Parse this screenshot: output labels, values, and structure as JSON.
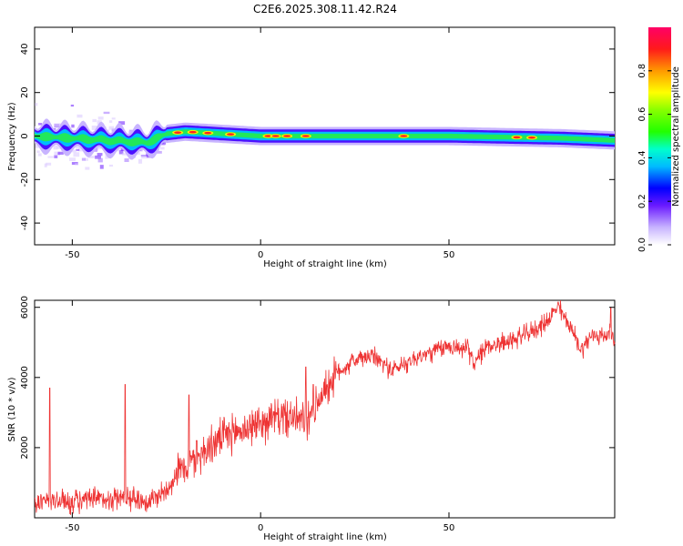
{
  "title": "C2E6.2025.308.11.42.R24",
  "chart_data": [
    {
      "type": "heatmap",
      "xlabel": "Height of straight line (km)",
      "ylabel": "Frequency (Hz)",
      "xlim": [
        -60,
        94
      ],
      "ylim": [
        -50,
        50
      ],
      "x_ticks": [
        "-50",
        "0",
        "50"
      ],
      "y_ticks": [
        "-40",
        "-20",
        "0",
        "20",
        "40"
      ],
      "x_tick_values": [
        -50,
        0,
        50
      ],
      "y_tick_values": [
        -40,
        -20,
        0,
        20,
        40
      ],
      "band": {
        "center_hz_by_x": [
          [
            -60,
            0
          ],
          [
            -30,
            -3
          ],
          [
            -25,
            1
          ],
          [
            -20,
            2
          ],
          [
            0,
            0
          ],
          [
            50,
            0
          ],
          [
            80,
            -1
          ],
          [
            94,
            -2
          ]
        ],
        "hot_spots_x": [
          -22,
          -18,
          -14,
          -8,
          2,
          4,
          7,
          12,
          38,
          68,
          72
        ]
      },
      "colorbar": {
        "label": "Normalized spectral amplitude",
        "ticks": [
          "0.0",
          "0.2",
          "0.4",
          "0.6",
          "0.8"
        ],
        "tick_values": [
          0.0,
          0.2,
          0.4,
          0.6,
          0.8
        ],
        "range": [
          0,
          1
        ]
      }
    },
    {
      "type": "line",
      "xlabel": "Height of straight line (km)",
      "ylabel": "SNR (10 * v/v)",
      "xlim": [
        -60,
        94
      ],
      "ylim": [
        0,
        6200
      ],
      "x_ticks": [
        "-50",
        "0",
        "50"
      ],
      "y_ticks": [
        "2000",
        "4000",
        "6000"
      ],
      "x_tick_values": [
        -50,
        0,
        50
      ],
      "y_tick_values": [
        2000,
        4000,
        6000
      ],
      "color": "#ee3333",
      "trend": [
        [
          -60,
          400
        ],
        [
          -55,
          500
        ],
        [
          -50,
          450
        ],
        [
          -45,
          500
        ],
        [
          -40,
          550
        ],
        [
          -35,
          600
        ],
        [
          -30,
          450
        ],
        [
          -25,
          800
        ],
        [
          -22,
          1300
        ],
        [
          -18,
          1600
        ],
        [
          -15,
          1900
        ],
        [
          -10,
          2300
        ],
        [
          -5,
          2500
        ],
        [
          0,
          2700
        ],
        [
          5,
          2900
        ],
        [
          10,
          2800
        ],
        [
          13,
          2700
        ],
        [
          15,
          3300
        ],
        [
          20,
          4100
        ],
        [
          25,
          4500
        ],
        [
          30,
          4600
        ],
        [
          35,
          4200
        ],
        [
          40,
          4500
        ],
        [
          45,
          4700
        ],
        [
          50,
          4900
        ],
        [
          55,
          4800
        ],
        [
          57,
          4400
        ],
        [
          60,
          4900
        ],
        [
          65,
          5000
        ],
        [
          70,
          5200
        ],
        [
          75,
          5500
        ],
        [
          79,
          6000
        ],
        [
          82,
          5500
        ],
        [
          85,
          4800
        ],
        [
          88,
          5200
        ],
        [
          94,
          5200
        ]
      ],
      "spikes": [
        [
          -56,
          3700
        ],
        [
          -36,
          3800
        ],
        [
          -19,
          3500
        ],
        [
          -17,
          2200
        ],
        [
          12,
          4300
        ],
        [
          14,
          3800
        ],
        [
          79,
          6150
        ],
        [
          93,
          6000
        ]
      ]
    }
  ]
}
